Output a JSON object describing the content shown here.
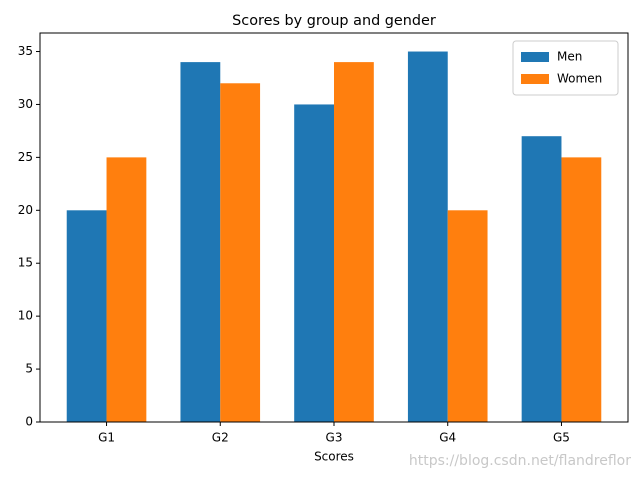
{
  "chart_data": {
    "type": "grouped_bar",
    "title": "Scores by group and gender",
    "xlabel": "Scores",
    "categories": [
      "G1",
      "G2",
      "G3",
      "G4",
      "G5"
    ],
    "series": [
      {
        "name": "Men",
        "color": "#1f77b4",
        "values": [
          20,
          34,
          30,
          35,
          27
        ]
      },
      {
        "name": "Women",
        "color": "#ff7f0e",
        "values": [
          25,
          32,
          34,
          20,
          25
        ]
      }
    ],
    "ylim": [
      0,
      36.75
    ],
    "yticks": [
      0,
      5,
      10,
      15,
      20,
      25,
      30,
      35
    ],
    "legend": "upper right",
    "grid": false,
    "watermark": "https://blog.csdn.net/flandreflor"
  }
}
